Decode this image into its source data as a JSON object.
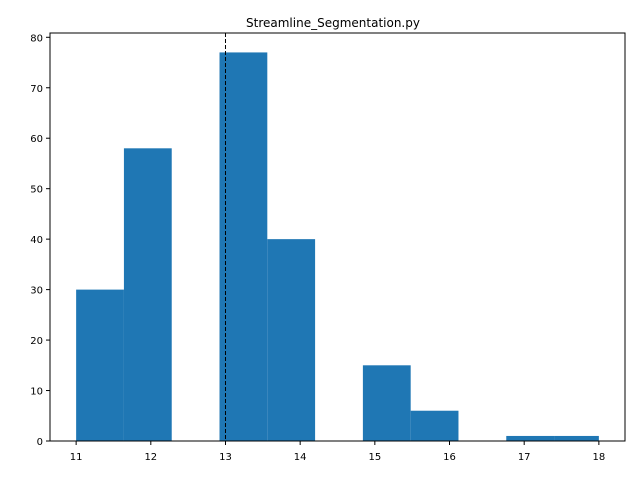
{
  "chart_data": {
    "type": "bar",
    "title": "Streamline_Segmentation.py",
    "xlabel": "",
    "ylabel": "",
    "xlim": [
      10.65,
      18.35
    ],
    "ylim": [
      0,
      80.85
    ],
    "x_ticks": [
      11,
      12,
      13,
      14,
      15,
      16,
      17,
      18
    ],
    "y_ticks": [
      0,
      10,
      20,
      30,
      40,
      50,
      60,
      70,
      80
    ],
    "bar_color": "#1f77b4",
    "bins": [
      {
        "x0": 11.0,
        "x1": 11.64,
        "count": 30
      },
      {
        "x0": 11.64,
        "x1": 12.28,
        "count": 58
      },
      {
        "x0": 12.28,
        "x1": 12.92,
        "count": 0
      },
      {
        "x0": 12.92,
        "x1": 13.56,
        "count": 77
      },
      {
        "x0": 13.56,
        "x1": 14.2,
        "count": 40
      },
      {
        "x0": 14.2,
        "x1": 14.84,
        "count": 0
      },
      {
        "x0": 14.84,
        "x1": 15.48,
        "count": 15
      },
      {
        "x0": 15.48,
        "x1": 16.12,
        "count": 6
      },
      {
        "x0": 16.12,
        "x1": 16.76,
        "count": 0
      },
      {
        "x0": 16.76,
        "x1": 17.4,
        "count": 1
      },
      {
        "x0": 17.4,
        "x1": 18.0,
        "count": 1
      }
    ],
    "reference_line": {
      "x": 13.0,
      "style": "dashed",
      "color": "#000000"
    },
    "grid": false,
    "legend": "none"
  }
}
